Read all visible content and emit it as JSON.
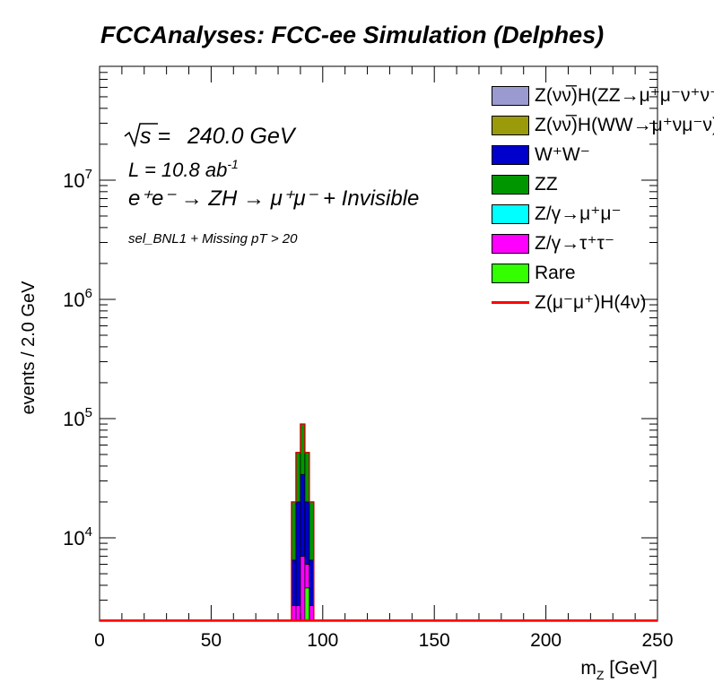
{
  "page": {
    "title": "FCCAnalyses: FCC-ee Simulation (Delphes)"
  },
  "annotations": {
    "sqrt_s": "240.0 GeV",
    "lumi": "L = 10.8 ab",
    "lumi_exp": "-1",
    "process": "e⁺e⁻ → ZH → μ⁺μ⁻ + Invisible",
    "selection": "sel_BNL1 + Missing pT > 20"
  },
  "legend": [
    {
      "label": "Z(νν̅)H(ZZ→μ⁺μ⁻ν⁺ν⁻)",
      "color": "#9a9ad0",
      "style": "fill"
    },
    {
      "label": "Z(νν̅)H(WW→μ⁺νμ⁻ν)",
      "color": "#9a9a0a",
      "style": "fill"
    },
    {
      "label": "W⁺W⁻",
      "color": "#0000cc",
      "style": "fill"
    },
    {
      "label": "ZZ",
      "color": "#009600",
      "style": "fill"
    },
    {
      "label": "Z/γ→μ⁺μ⁻",
      "color": "#00ffff",
      "style": "fill"
    },
    {
      "label": "Z/γ→τ⁺τ⁻",
      "color": "#ff00ff",
      "style": "fill"
    },
    {
      "label": "Rare",
      "color": "#33ff00",
      "style": "fill"
    },
    {
      "label": "Z(μ⁻μ⁺)H(4ν)",
      "color": "#ff0000",
      "style": "line"
    }
  ],
  "chart_data": {
    "type": "bar",
    "xlabel": "m_Z [GeV]",
    "ylabel": "events / 2.0 GeV",
    "xlim": [
      0,
      250
    ],
    "ylim": [
      2000,
      90000000
    ],
    "log_y": true,
    "grid": false,
    "legend_position": "top-right",
    "x_ticks": [
      0,
      50,
      100,
      150,
      200,
      250
    ],
    "y_ticks": [
      {
        "value": 10000,
        "base": "10",
        "exp": "4"
      },
      {
        "value": 100000,
        "base": "10",
        "exp": "5"
      },
      {
        "value": 1000000,
        "base": "10",
        "exp": "6"
      },
      {
        "value": 10000000,
        "base": "10",
        "exp": "7"
      }
    ],
    "bin_width": 2,
    "bins": [
      {
        "x_low": 86,
        "stack": [
          {
            "name": "Z/γ→τ⁺τ⁻",
            "color": "#ff00ff",
            "value": 2700
          },
          {
            "name": "W⁺W⁻",
            "color": "#0000cc",
            "value": 6500
          },
          {
            "name": "ZZ",
            "color": "#009600",
            "value": 20000
          }
        ]
      },
      {
        "x_low": 88,
        "stack": [
          {
            "name": "Z/γ→τ⁺τ⁻",
            "color": "#ff00ff",
            "value": 2700
          },
          {
            "name": "W⁺W⁻",
            "color": "#0000cc",
            "value": 20000
          },
          {
            "name": "ZZ",
            "color": "#009600",
            "value": 52000
          }
        ]
      },
      {
        "x_low": 90,
        "stack": [
          {
            "name": "Z/γ→τ⁺τ⁻",
            "color": "#ff00ff",
            "value": 7000
          },
          {
            "name": "W⁺W⁻",
            "color": "#0000cc",
            "value": 34000
          },
          {
            "name": "ZZ",
            "color": "#009600",
            "value": 90000
          }
        ]
      },
      {
        "x_low": 92,
        "stack": [
          {
            "name": "Rare",
            "color": "#33ff00",
            "value": 3800
          },
          {
            "name": "Z/γ→τ⁺τ⁻",
            "color": "#ff00ff",
            "value": 6000
          },
          {
            "name": "W⁺W⁻",
            "color": "#0000cc",
            "value": 20000
          },
          {
            "name": "ZZ",
            "color": "#009600",
            "value": 52000
          }
        ]
      },
      {
        "x_low": 94,
        "stack": [
          {
            "name": "Z/γ→τ⁺τ⁻",
            "color": "#ff00ff",
            "value": 2700
          },
          {
            "name": "W⁺W⁻",
            "color": "#0000cc",
            "value": 6500
          },
          {
            "name": "ZZ",
            "color": "#009600",
            "value": 20000
          }
        ]
      }
    ]
  }
}
